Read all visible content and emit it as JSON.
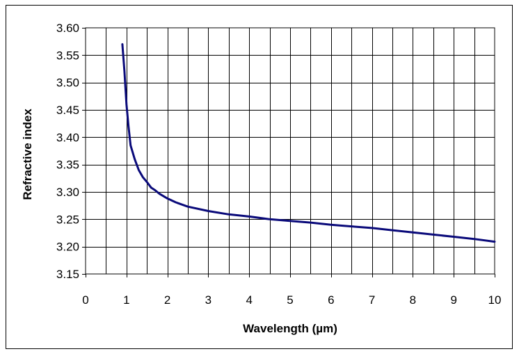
{
  "chart_data": {
    "type": "line",
    "title": "",
    "xlabel": "Wavelength (µm)",
    "ylabel": "Refractive index",
    "xlim": [
      0,
      10
    ],
    "ylim": [
      3.15,
      3.6
    ],
    "x_ticks": [
      "0",
      "1",
      "2",
      "3",
      "4",
      "5",
      "6",
      "7",
      "8",
      "9",
      "10"
    ],
    "y_ticks": [
      "3.15",
      "3.20",
      "3.25",
      "3.30",
      "3.35",
      "3.40",
      "3.45",
      "3.50",
      "3.55",
      "3.60"
    ],
    "grid": true,
    "series": [
      {
        "name": "Refractive index",
        "color": "#0a0a7a",
        "x": [
          0.9,
          0.95,
          1.0,
          1.05,
          1.1,
          1.2,
          1.3,
          1.4,
          1.5,
          1.6,
          1.7,
          1.8,
          2.0,
          2.2,
          2.5,
          3.0,
          3.5,
          4.0,
          4.5,
          5.0,
          5.5,
          6.0,
          6.5,
          7.0,
          7.5,
          8.0,
          8.5,
          9.0,
          9.5,
          10.0
        ],
        "values": [
          3.57,
          3.52,
          3.46,
          3.42,
          3.385,
          3.36,
          3.34,
          3.327,
          3.318,
          3.308,
          3.303,
          3.297,
          3.288,
          3.281,
          3.273,
          3.265,
          3.259,
          3.255,
          3.25,
          3.247,
          3.244,
          3.24,
          3.237,
          3.234,
          3.23,
          3.226,
          3.222,
          3.218,
          3.214,
          3.209
        ]
      }
    ]
  }
}
